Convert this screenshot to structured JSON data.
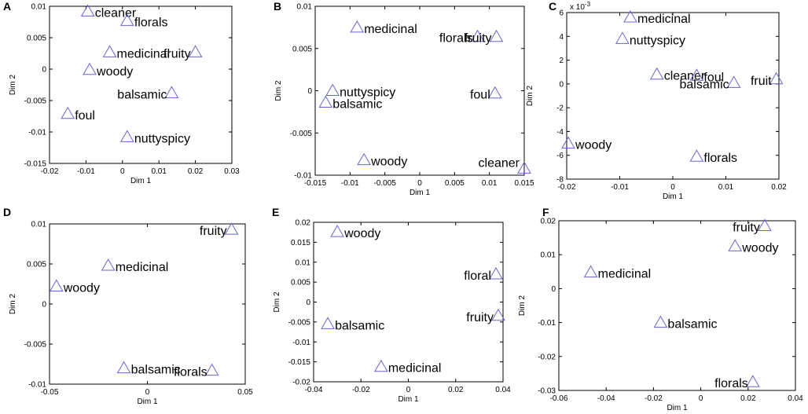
{
  "figure": {
    "panel_letters": [
      "A",
      "B",
      "C",
      "D",
      "E",
      "F"
    ]
  },
  "chart_data": [
    {
      "type": "scatter",
      "letter": "A",
      "xlabel": "Dim 1",
      "ylabel": "Dim 2",
      "xlim": [
        -0.02,
        0.03
      ],
      "ylim": [
        -0.015,
        0.01
      ],
      "xticks": [
        -0.02,
        -0.01,
        0,
        0.01,
        0.02,
        0.03
      ],
      "xtick_labels": [
        "-0.02",
        "-0.01",
        "0",
        "0.01",
        "0.02",
        "0.03"
      ],
      "yticks": [
        -0.015,
        -0.01,
        -0.005,
        0,
        0.005,
        0.01
      ],
      "ytick_labels": [
        "-0.015",
        "-0.01",
        "-0.005",
        "0",
        "0.005",
        "0.01"
      ],
      "points": [
        {
          "label": "cleaner",
          "x": -0.0095,
          "y": 0.0092
        },
        {
          "label": "florals",
          "x": 0.0013,
          "y": 0.0077
        },
        {
          "label": "medicinal",
          "x": -0.0035,
          "y": 0.0027
        },
        {
          "label": "fruity",
          "x": 0.02,
          "y": 0.0027
        },
        {
          "label": "woody",
          "x": -0.009,
          "y": -0.0001
        },
        {
          "label": "balsamic",
          "x": 0.0135,
          "y": -0.0038
        },
        {
          "label": "foul",
          "x": -0.015,
          "y": -0.0071
        },
        {
          "label": "nuttyspicy",
          "x": 0.0013,
          "y": -0.0108
        }
      ]
    },
    {
      "type": "scatter",
      "letter": "B",
      "xlabel": "Dim 1",
      "ylabel": "Dim 2",
      "xlim": [
        -0.015,
        0.015
      ],
      "ylim": [
        -0.01,
        0.01
      ],
      "xticks": [
        -0.015,
        -0.01,
        -0.005,
        0,
        0.005,
        0.01,
        0.015
      ],
      "xtick_labels": [
        "-0.015",
        "-0.01",
        "-0.005",
        "0",
        "0.005",
        "0.01",
        "0.015"
      ],
      "yticks": [
        -0.01,
        -0.005,
        0,
        0.005,
        0.01
      ],
      "ytick_labels": [
        "-0.01",
        "-0.005",
        "0",
        "0.005",
        "0.01"
      ],
      "points": [
        {
          "label": "medicinal",
          "x": -0.009,
          "y": 0.0075
        },
        {
          "label": "florals",
          "x": 0.0083,
          "y": 0.0064
        },
        {
          "label": "fruity",
          "x": 0.011,
          "y": 0.0064
        },
        {
          "label": "nuttyspicy",
          "x": -0.0125,
          "y": 0.0
        },
        {
          "label": "balsamic",
          "x": -0.0135,
          "y": -0.0014
        },
        {
          "label": "foul",
          "x": 0.0108,
          "y": -0.0003
        },
        {
          "label": "woody",
          "x": -0.008,
          "y": -0.0082
        },
        {
          "label": "cleaner",
          "x": 0.015,
          "y": -0.0092
        }
      ]
    },
    {
      "type": "scatter",
      "letter": "C",
      "xlabel": "Dim 1",
      "ylabel": "Dim 2",
      "multiplier": "x 10",
      "multiplier_exp": "-3",
      "xlim": [
        -0.02,
        0.02
      ],
      "ylim": [
        -8,
        6
      ],
      "xticks": [
        -0.02,
        -0.01,
        0,
        0.01,
        0.02
      ],
      "xtick_labels": [
        "-0.02",
        "-0.01",
        "0",
        "0.01",
        "0.02"
      ],
      "yticks": [
        -8,
        -6,
        -4,
        -2,
        0,
        2,
        4,
        6
      ],
      "ytick_labels": [
        "-8",
        "-6",
        "-4",
        "-2",
        "0",
        "2",
        "4",
        "6"
      ],
      "points": [
        {
          "label": "medicinal",
          "x": -0.008,
          "y": 5.6
        },
        {
          "label": "nuttyspicy",
          "x": -0.0095,
          "y": 3.8
        },
        {
          "label": "cleaner",
          "x": -0.003,
          "y": 0.8
        },
        {
          "label": "foul",
          "x": 0.0045,
          "y": 0.7
        },
        {
          "label": "balsamic",
          "x": 0.0115,
          "y": 0.1
        },
        {
          "label": "fruit",
          "x": 0.0195,
          "y": 0.4
        },
        {
          "label": "woody",
          "x": -0.0197,
          "y": -5.0
        },
        {
          "label": "florals",
          "x": 0.0045,
          "y": -6.1
        }
      ]
    },
    {
      "type": "scatter",
      "letter": "D",
      "xlabel": "Dim 1",
      "ylabel": "Dim 2",
      "xlim": [
        -0.05,
        0.05
      ],
      "ylim": [
        -0.01,
        0.01
      ],
      "xticks": [
        -0.05,
        0,
        0.05
      ],
      "xtick_labels": [
        "-0.05",
        "0",
        "0.05"
      ],
      "yticks": [
        -0.01,
        -0.005,
        0,
        0.005,
        0.01
      ],
      "ytick_labels": [
        "-0.01",
        "-0.005",
        "0",
        "0.005",
        "0.01"
      ],
      "points": [
        {
          "label": "fruity",
          "x": 0.043,
          "y": 0.0093
        },
        {
          "label": "medicinal",
          "x": -0.02,
          "y": 0.0048
        },
        {
          "label": "woody",
          "x": -0.0465,
          "y": 0.0022
        },
        {
          "label": "balsamic",
          "x": -0.012,
          "y": -0.008
        },
        {
          "label": "florals",
          "x": 0.033,
          "y": -0.0083
        }
      ]
    },
    {
      "type": "scatter",
      "letter": "E",
      "xlabel": "Dim 1",
      "ylabel": "Dim 2",
      "xlim": [
        -0.04,
        0.04
      ],
      "ylim": [
        -0.02,
        0.02
      ],
      "xticks": [
        -0.04,
        -0.02,
        0,
        0.02,
        0.04
      ],
      "xtick_labels": [
        "-0.04",
        "-0.02",
        "0",
        "0.02",
        "0.04"
      ],
      "yticks": [
        -0.02,
        -0.015,
        -0.01,
        -0.005,
        0,
        0.005,
        0.01,
        0.015,
        0.02
      ],
      "ytick_labels": [
        "-0.02",
        "-0.015",
        "-0.01",
        "-0.005",
        "0",
        "0.005",
        "0.01",
        "0.015",
        "0.02"
      ],
      "points": [
        {
          "label": "woody",
          "x": -0.03,
          "y": 0.0176
        },
        {
          "label": "floral",
          "x": 0.037,
          "y": 0.007
        },
        {
          "label": "fruity",
          "x": 0.038,
          "y": -0.0034
        },
        {
          "label": "balsamic",
          "x": -0.034,
          "y": -0.0055
        },
        {
          "label": "medicinal",
          "x": -0.0115,
          "y": -0.0162
        }
      ]
    },
    {
      "type": "scatter",
      "letter": "F",
      "xlabel": "Dim 1",
      "ylabel": "Dim 2",
      "xlim": [
        -0.06,
        0.04
      ],
      "ylim": [
        -0.03,
        0.02
      ],
      "xticks": [
        -0.06,
        -0.04,
        -0.02,
        0,
        0.02,
        0.04
      ],
      "xtick_labels": [
        "-0.06",
        "-0.04",
        "-0.02",
        "0",
        "0.02",
        "0.04"
      ],
      "yticks": [
        -0.03,
        -0.02,
        -0.01,
        0,
        0.01,
        0.02
      ],
      "ytick_labels": [
        "-0.03",
        "-0.02",
        "-0.01",
        "0",
        "0.01",
        "0.02"
      ],
      "points": [
        {
          "label": "fruity",
          "x": 0.027,
          "y": 0.0185
        },
        {
          "label": "woody",
          "x": 0.0145,
          "y": 0.0125
        },
        {
          "label": "medicinal",
          "x": -0.0465,
          "y": 0.0048
        },
        {
          "label": "balsamic",
          "x": -0.017,
          "y": -0.01
        },
        {
          "label": "florals",
          "x": 0.022,
          "y": -0.0275
        }
      ]
    }
  ]
}
